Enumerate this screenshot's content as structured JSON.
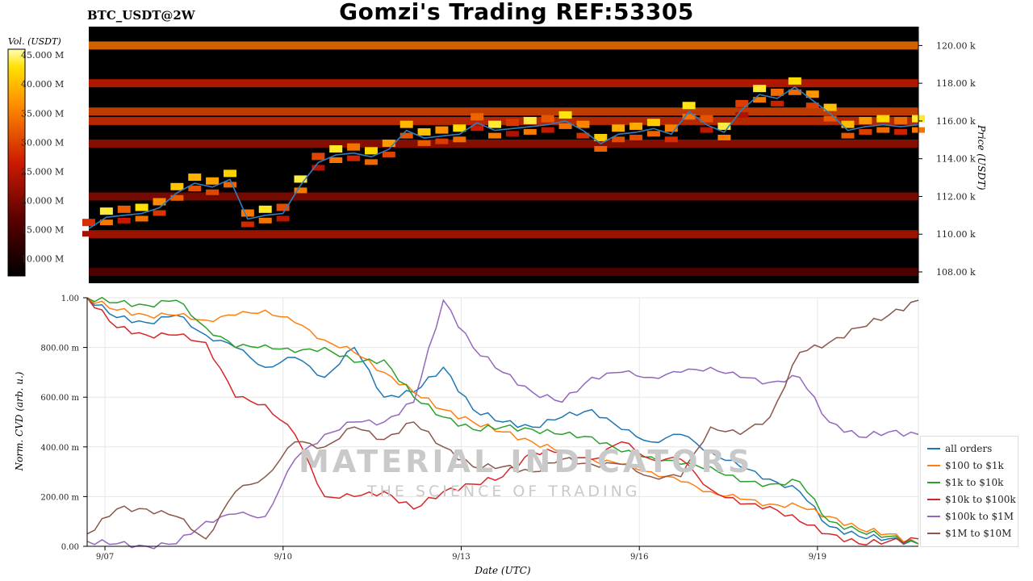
{
  "header": {
    "pair": "BTC_USDT@2W",
    "title": "Gomzi's Trading REF:53305"
  },
  "heatmap": {
    "colorbar_label": "Vol. (USDT)",
    "colorbar_ticks": [
      "45.000 M",
      "40.000 M",
      "35.000 M",
      "30.000 M",
      "25.000 M",
      "20.000 M",
      "15.000 M",
      "10.000 M"
    ],
    "price_label": "Price (USDT)",
    "price_ticks": [
      "120.00 k",
      "118.00 k",
      "116.00 k",
      "114.00 k",
      "112.00 k",
      "110.00 k",
      "108.00 k"
    ]
  },
  "watermark": {
    "name": "MATERIAL INDICATORS",
    "tagline": "THE SCIENCE OF TRADING"
  },
  "colors": {
    "all": "#1f77b4",
    "c100": "#ff7f0e",
    "c1k": "#2ca02c",
    "c10k": "#d62728",
    "c100k": "#9467bd",
    "c1m": "#8c564b",
    "price": "#2f7fc1"
  },
  "chart_data": [
    {
      "type": "heatmap",
      "title": "",
      "ylabel": "Price (USDT)",
      "ylim": [
        107400,
        121000
      ],
      "colorbar": {
        "label": "Vol. (USDT)",
        "range_M": [
          7,
          46
        ]
      },
      "price_series": {
        "name": "price",
        "t": [
          0,
          0.3,
          0.6,
          0.9,
          1.2,
          1.5,
          1.8,
          2.1,
          2.4,
          2.7,
          3.0,
          3.3,
          3.6,
          3.9,
          4.2,
          4.5,
          4.8,
          5.1,
          5.4,
          5.7,
          6.0,
          6.3,
          6.6,
          6.9,
          7.2,
          7.5,
          7.8,
          8.1,
          8.4,
          8.7,
          9.0,
          9.3,
          9.6,
          9.9,
          10.2,
          10.5,
          10.8,
          11.1,
          11.4,
          11.7,
          12.0,
          12.3,
          12.6,
          12.9,
          13.2,
          13.5,
          13.8,
          14.1
        ],
        "price": [
          110300,
          110900,
          111000,
          111100,
          111400,
          112200,
          112700,
          112500,
          112900,
          110800,
          111000,
          111100,
          112600,
          113800,
          114200,
          114300,
          114100,
          114500,
          115500,
          115100,
          115200,
          115300,
          115900,
          115500,
          115600,
          115700,
          115800,
          116000,
          115500,
          114800,
          115300,
          115400,
          115600,
          115300,
          116500,
          115800,
          115400,
          116600,
          117400,
          117200,
          117800,
          117100,
          116400,
          115500,
          115700,
          115800,
          115700,
          115800
        ]
      },
      "bands": [
        {
          "price": 120000,
          "intensity": 0.7
        },
        {
          "price": 118000,
          "intensity": 0.5
        },
        {
          "price": 116500,
          "intensity": 0.6
        },
        {
          "price": 116000,
          "intensity": 0.55
        },
        {
          "price": 114800,
          "intensity": 0.4
        },
        {
          "price": 112000,
          "intensity": 0.35
        },
        {
          "price": 110000,
          "intensity": 0.45
        },
        {
          "price": 108000,
          "intensity": 0.25
        }
      ]
    },
    {
      "type": "line",
      "title": "",
      "xlabel": "Date (UTC)",
      "ylabel": "Norm. CVD (arb. u.)",
      "x_ticks": [
        "9/07",
        "9/10",
        "9/13",
        "9/16",
        "9/19"
      ],
      "y_ticks": [
        "1.00",
        "800.00 m",
        "600.00 m",
        "400.00 m",
        "200.00 m",
        "0.00"
      ],
      "ylim": [
        0,
        1
      ],
      "x": [
        0,
        0.5,
        1,
        1.5,
        2,
        2.5,
        3,
        3.5,
        4,
        4.5,
        5,
        5.5,
        6,
        6.5,
        7,
        7.5,
        8,
        8.5,
        9,
        9.5,
        10,
        10.5,
        11,
        11.5,
        12,
        12.5,
        13,
        13.5,
        14
      ],
      "series": [
        {
          "name": "all orders",
          "key": "all",
          "values": [
            1.0,
            0.92,
            0.9,
            0.93,
            0.85,
            0.8,
            0.72,
            0.76,
            0.68,
            0.8,
            0.6,
            0.62,
            0.72,
            0.55,
            0.5,
            0.48,
            0.52,
            0.55,
            0.47,
            0.42,
            0.45,
            0.38,
            0.32,
            0.27,
            0.22,
            0.08,
            0.04,
            0.03,
            0.01
          ]
        },
        {
          "name": "$100 to $1k",
          "key": "c100",
          "values": [
            1.0,
            0.95,
            0.93,
            0.93,
            0.91,
            0.93,
            0.95,
            0.9,
            0.83,
            0.78,
            0.7,
            0.62,
            0.55,
            0.5,
            0.46,
            0.42,
            0.38,
            0.35,
            0.33,
            0.3,
            0.26,
            0.22,
            0.19,
            0.17,
            0.16,
            0.12,
            0.07,
            0.05,
            0.01
          ]
        },
        {
          "name": "$1k to $10k",
          "key": "c1k",
          "values": [
            1.0,
            0.98,
            0.97,
            0.99,
            0.88,
            0.8,
            0.81,
            0.78,
            0.8,
            0.74,
            0.75,
            0.6,
            0.52,
            0.47,
            0.48,
            0.47,
            0.45,
            0.44,
            0.38,
            0.36,
            0.33,
            0.32,
            0.26,
            0.25,
            0.26,
            0.1,
            0.06,
            0.04,
            0.01
          ]
        },
        {
          "name": "$10k to $100k",
          "key": "c10k",
          "values": [
            1.0,
            0.88,
            0.85,
            0.85,
            0.82,
            0.6,
            0.57,
            0.45,
            0.2,
            0.2,
            0.22,
            0.15,
            0.22,
            0.25,
            0.28,
            0.38,
            0.38,
            0.35,
            0.42,
            0.35,
            0.35,
            0.23,
            0.17,
            0.16,
            0.1,
            0.05,
            0.01,
            0.02,
            0.03
          ]
        },
        {
          "name": "$100k to $1M",
          "key": "c100k",
          "values": [
            0.02,
            0.01,
            0.0,
            0.01,
            0.1,
            0.13,
            0.12,
            0.35,
            0.45,
            0.5,
            0.5,
            0.58,
            0.99,
            0.8,
            0.7,
            0.62,
            0.58,
            0.68,
            0.7,
            0.68,
            0.7,
            0.72,
            0.68,
            0.66,
            0.68,
            0.5,
            0.44,
            0.46,
            0.45
          ]
        },
        {
          "name": "$1M to $10M",
          "key": "c1m",
          "values": [
            0.05,
            0.15,
            0.15,
            0.12,
            0.03,
            0.22,
            0.28,
            0.42,
            0.4,
            0.48,
            0.43,
            0.5,
            0.4,
            0.32,
            0.32,
            0.3,
            0.35,
            0.33,
            0.33,
            0.28,
            0.28,
            0.48,
            0.45,
            0.52,
            0.78,
            0.82,
            0.88,
            0.93,
            0.99
          ]
        }
      ]
    }
  ]
}
